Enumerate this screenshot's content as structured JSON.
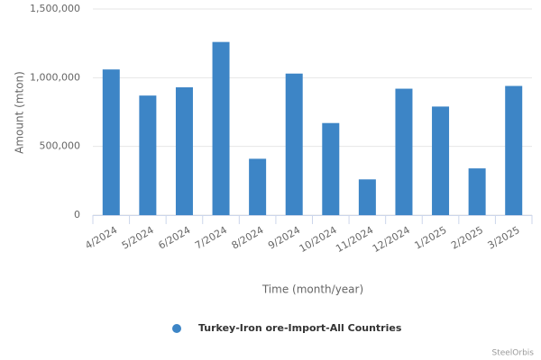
{
  "chart_data": {
    "type": "bar",
    "x_label": "Time (month/year)",
    "y_label": "Amount (mton)",
    "categories": [
      "4/2024",
      "5/2024",
      "6/2024",
      "7/2024",
      "8/2024",
      "9/2024",
      "10/2024",
      "11/2024",
      "12/2024",
      "1/2025",
      "2/2025",
      "3/2025"
    ],
    "series": [
      {
        "name": "Turkey-Iron ore-Import-All Countries",
        "color": "#3d85c6",
        "values": [
          1060000,
          870000,
          930000,
          1260000,
          410000,
          1030000,
          670000,
          260000,
          920000,
          790000,
          340000,
          940000
        ]
      }
    ],
    "ylim": [
      0,
      1500000
    ],
    "yticks": [
      0,
      {
        "value": 500000,
        "label": "500,000"
      },
      {
        "value": 1000000,
        "label": "1,000,000"
      },
      {
        "value": 1500000,
        "label": "1,500,000"
      }
    ],
    "grid": true,
    "legend": "bottom",
    "credits": "SteelOrbis"
  }
}
